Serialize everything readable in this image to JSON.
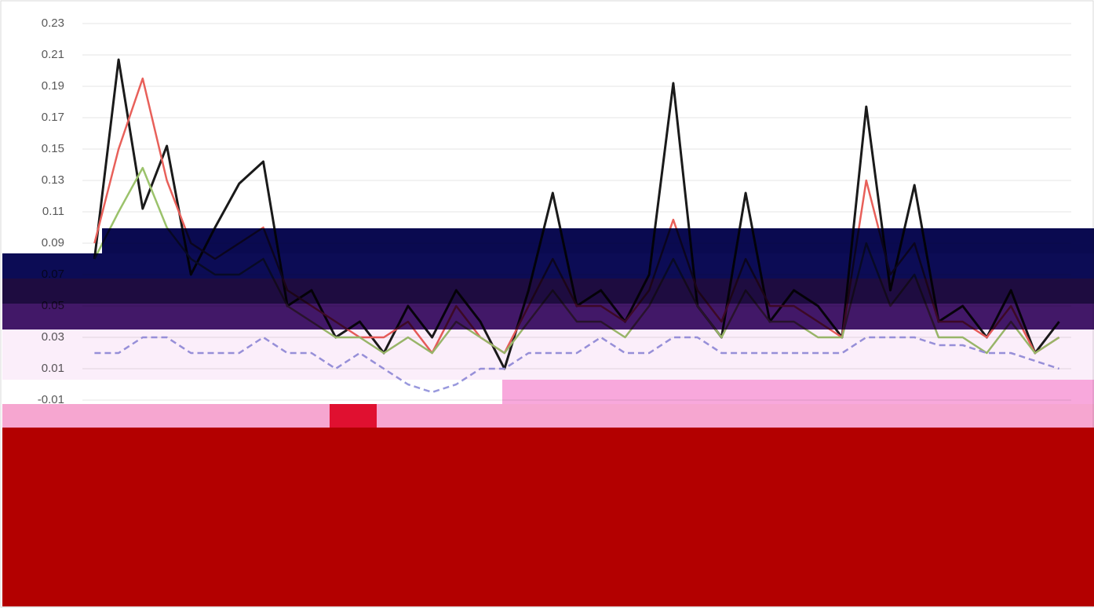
{
  "chart_data": {
    "type": "line",
    "categories": [
      null,
      null,
      null,
      null,
      null,
      null,
      null,
      null,
      null,
      null,
      null,
      null,
      null,
      null,
      null,
      null,
      null,
      null,
      null,
      null,
      null,
      null,
      null,
      null,
      null,
      null,
      null,
      null,
      null,
      null,
      null,
      null,
      null,
      null,
      null,
      null,
      null,
      null,
      null,
      null,
      null
    ],
    "series": [
      {
        "color": "#1a1a1a",
        "values": [
          0.08,
          0.207,
          0.112,
          0.152,
          0.07,
          0.1,
          0.128,
          0.142,
          0.05,
          0.06,
          0.03,
          0.04,
          0.02,
          0.05,
          0.03,
          0.06,
          0.04,
          0.01,
          0.06,
          0.122,
          0.05,
          0.06,
          0.04,
          0.07,
          0.192,
          0.05,
          0.03,
          0.122,
          0.04,
          0.06,
          0.05,
          0.03,
          0.177,
          0.06,
          0.127,
          0.04,
          0.05,
          0.03,
          0.06,
          0.02,
          0.04
        ]
      },
      {
        "color": "#e8605a",
        "values": [
          0.09,
          0.15,
          0.195,
          0.13,
          0.09,
          0.08,
          0.09,
          0.1,
          0.06,
          0.05,
          0.04,
          0.03,
          0.03,
          0.04,
          0.02,
          0.05,
          0.03,
          0.02,
          0.05,
          0.08,
          0.05,
          0.05,
          0.04,
          0.06,
          0.105,
          0.06,
          0.04,
          0.08,
          0.05,
          0.05,
          0.04,
          0.03,
          0.13,
          0.07,
          0.09,
          0.04,
          0.04,
          0.03,
          0.05,
          0.02,
          0.03
        ]
      },
      {
        "color": "#9bc26b",
        "values": [
          0.08,
          0.11,
          0.138,
          0.1,
          0.08,
          0.07,
          0.07,
          0.08,
          0.05,
          0.04,
          0.03,
          0.03,
          0.02,
          0.03,
          0.02,
          0.04,
          0.03,
          0.02,
          0.04,
          0.06,
          0.04,
          0.04,
          0.03,
          0.05,
          0.08,
          0.05,
          0.03,
          0.06,
          0.04,
          0.04,
          0.03,
          0.03,
          0.09,
          0.05,
          0.07,
          0.03,
          0.03,
          0.02,
          0.04,
          0.02,
          0.03
        ]
      },
      {
        "color": "#9999dd",
        "dashed": true,
        "values": [
          0.02,
          0.02,
          0.03,
          0.03,
          0.02,
          0.02,
          0.02,
          0.03,
          0.02,
          0.02,
          0.01,
          0.02,
          0.01,
          0.0,
          -0.005,
          0.0,
          0.01,
          0.01,
          0.02,
          0.02,
          0.02,
          0.03,
          0.02,
          0.02,
          0.03,
          0.03,
          0.02,
          0.02,
          0.02,
          0.02,
          0.02,
          0.02,
          0.03,
          0.03,
          0.03,
          0.025,
          0.025,
          0.02,
          0.02,
          0.015,
          0.01
        ]
      }
    ],
    "ylim": [
      -0.03,
      0.23
    ],
    "yticks": [
      0.23,
      0.21,
      0.19,
      0.17,
      0.15,
      0.13,
      0.11,
      0.09,
      0.07,
      0.05,
      0.03,
      0.01,
      -0.01
    ],
    "grid": true
  }
}
